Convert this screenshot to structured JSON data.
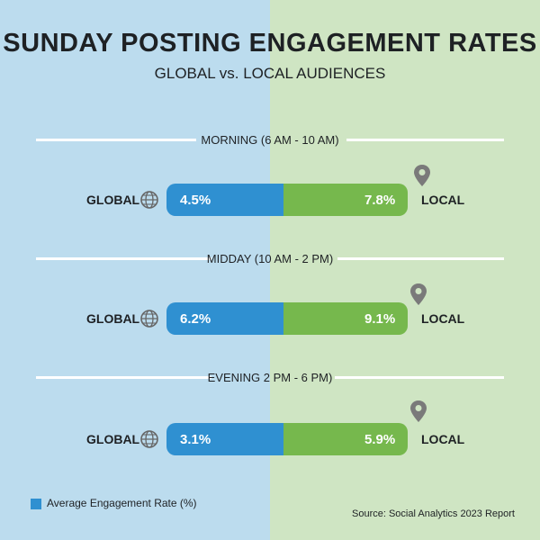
{
  "colors": {
    "global_bg": "#bcdcee",
    "local_bg": "#cfe5c3",
    "global_bar": "#2f90d1",
    "local_bar": "#76b84d"
  },
  "chart_data": {
    "type": "bar",
    "title": "SUNDAY POSTING ENGAGEMENT RATES",
    "subtitle": "GLOBAL vs. LOCAL AUDIENCES",
    "categories": [
      "MORNING (6 AM - 10 AM)",
      "MIDDAY (10 AM - 2 PM)",
      "EVENING 2 PM - 6 PM)"
    ],
    "series": [
      {
        "name": "GLOBAL",
        "values": [
          4.5,
          6.2,
          3.1
        ],
        "labels": [
          "4.5%",
          "6.2%",
          "3.1%"
        ]
      },
      {
        "name": "LOCAL",
        "values": [
          7.8,
          9.1,
          5.9
        ],
        "labels": [
          "7.8%",
          "9.1%",
          "5.9%"
        ]
      }
    ],
    "legend": "Average Engagement Rate (%)",
    "source": "Source: Social Analytics 2023 Report"
  },
  "icons": {
    "global": "globe-icon",
    "local": "map-pin-icon"
  }
}
